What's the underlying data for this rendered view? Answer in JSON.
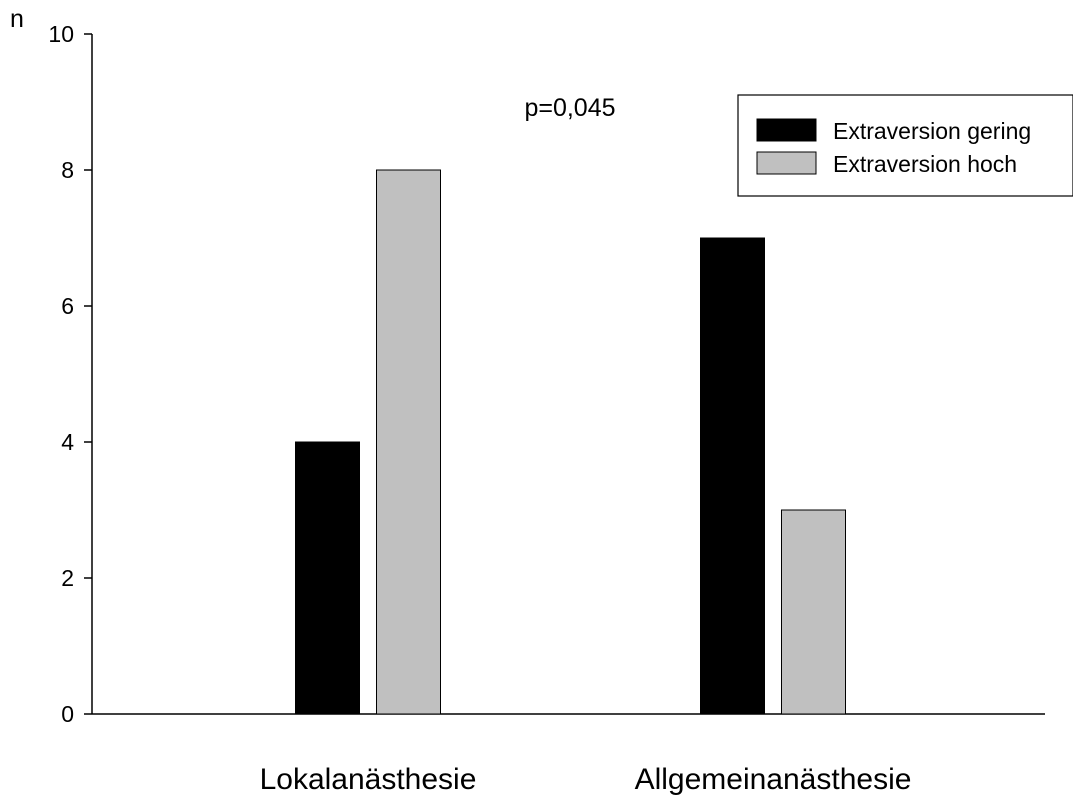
{
  "chart_data": {
    "type": "bar",
    "title": "",
    "xlabel": "",
    "ylabel": "n",
    "ylim": [
      0,
      10
    ],
    "yticks": [
      0,
      2,
      4,
      6,
      8,
      10
    ],
    "ytick_labels": [
      "0",
      "2",
      "4",
      "6",
      "8",
      "10"
    ],
    "categories": [
      "Lokalanästhesie",
      "Allgemeinanästhesie"
    ],
    "series": [
      {
        "name": "Extraversion gering",
        "values": [
          4,
          7
        ],
        "color": "#000000"
      },
      {
        "name": "Extraversion hoch",
        "values": [
          8,
          3
        ],
        "color": "#c0c0c0"
      }
    ],
    "annotation": "p=0,045",
    "legend_position": "top-right",
    "grid": false
  }
}
